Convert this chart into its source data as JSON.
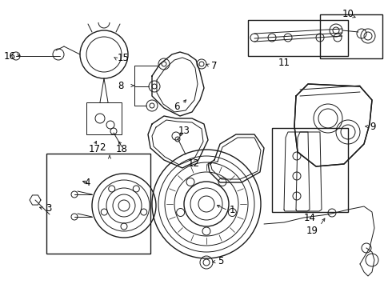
{
  "bg_color": "#ffffff",
  "fig_width": 4.9,
  "fig_height": 3.6,
  "dpi": 100,
  "line_color": "#1a1a1a",
  "font_size": 8.5,
  "text_color": "#000000"
}
